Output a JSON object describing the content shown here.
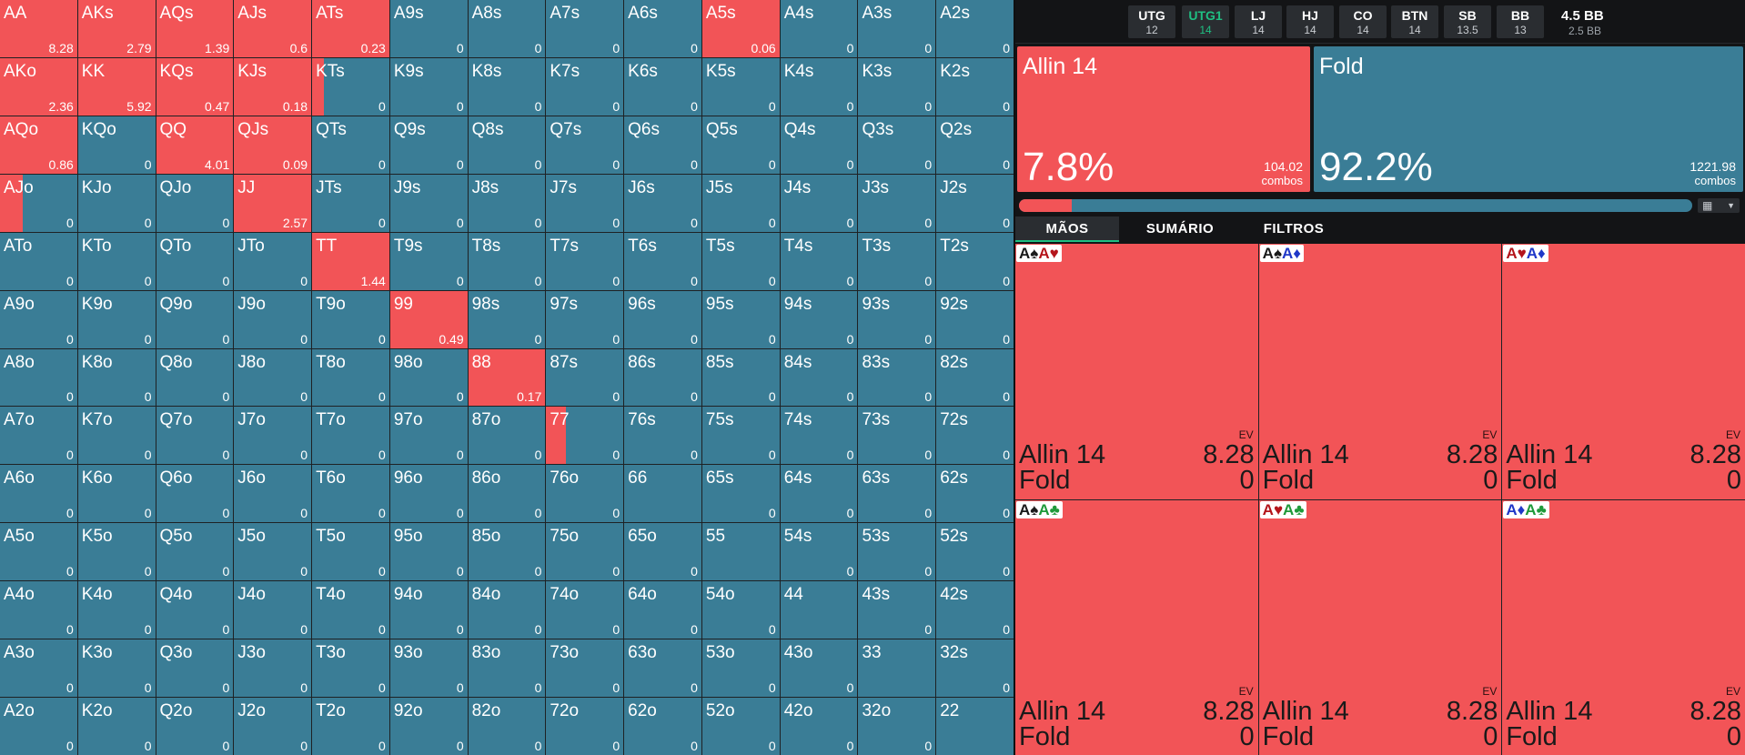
{
  "colors": {
    "allin": "#f25457",
    "fold": "#3a7d96",
    "active": "#1fbf82"
  },
  "range": [
    [
      [
        "AA",
        "8.28",
        1
      ],
      [
        "AKs",
        "2.79",
        1
      ],
      [
        "AQs",
        "1.39",
        1
      ],
      [
        "AJs",
        "0.6",
        1
      ],
      [
        "ATs",
        "0.23",
        1
      ],
      [
        "A9s",
        "0",
        0
      ],
      [
        "A8s",
        "0",
        0
      ],
      [
        "A7s",
        "0",
        0
      ],
      [
        "A6s",
        "0",
        0
      ],
      [
        "A5s",
        "0.06",
        1
      ],
      [
        "A4s",
        "0",
        0
      ],
      [
        "A3s",
        "0",
        0
      ],
      [
        "A2s",
        "0",
        0
      ]
    ],
    [
      [
        "AKo",
        "2.36",
        1
      ],
      [
        "KK",
        "5.92",
        1
      ],
      [
        "KQs",
        "0.47",
        1
      ],
      [
        "KJs",
        "0.18",
        1
      ],
      [
        "KTs",
        "0",
        0.15
      ],
      [
        "K9s",
        "0",
        0
      ],
      [
        "K8s",
        "0",
        0
      ],
      [
        "K7s",
        "0",
        0
      ],
      [
        "K6s",
        "0",
        0
      ],
      [
        "K5s",
        "0",
        0
      ],
      [
        "K4s",
        "0",
        0
      ],
      [
        "K3s",
        "0",
        0
      ],
      [
        "K2s",
        "0",
        0
      ]
    ],
    [
      [
        "AQo",
        "0.86",
        1
      ],
      [
        "KQo",
        "0",
        0
      ],
      [
        "QQ",
        "4.01",
        1
      ],
      [
        "QJs",
        "0.09",
        1
      ],
      [
        "QTs",
        "0",
        0
      ],
      [
        "Q9s",
        "0",
        0
      ],
      [
        "Q8s",
        "0",
        0
      ],
      [
        "Q7s",
        "0",
        0
      ],
      [
        "Q6s",
        "0",
        0
      ],
      [
        "Q5s",
        "0",
        0
      ],
      [
        "Q4s",
        "0",
        0
      ],
      [
        "Q3s",
        "0",
        0
      ],
      [
        "Q2s",
        "0",
        0
      ]
    ],
    [
      [
        "AJo",
        "0",
        0.3
      ],
      [
        "KJo",
        "0",
        0
      ],
      [
        "QJo",
        "0",
        0
      ],
      [
        "JJ",
        "2.57",
        1
      ],
      [
        "JTs",
        "0",
        0
      ],
      [
        "J9s",
        "0",
        0
      ],
      [
        "J8s",
        "0",
        0
      ],
      [
        "J7s",
        "0",
        0
      ],
      [
        "J6s",
        "0",
        0
      ],
      [
        "J5s",
        "0",
        0
      ],
      [
        "J4s",
        "0",
        0
      ],
      [
        "J3s",
        "0",
        0
      ],
      [
        "J2s",
        "0",
        0
      ]
    ],
    [
      [
        "ATo",
        "0",
        0
      ],
      [
        "KTo",
        "0",
        0
      ],
      [
        "QTo",
        "0",
        0
      ],
      [
        "JTo",
        "0",
        0
      ],
      [
        "TT",
        "1.44",
        1
      ],
      [
        "T9s",
        "0",
        0
      ],
      [
        "T8s",
        "0",
        0
      ],
      [
        "T7s",
        "0",
        0
      ],
      [
        "T6s",
        "0",
        0
      ],
      [
        "T5s",
        "0",
        0
      ],
      [
        "T4s",
        "0",
        0
      ],
      [
        "T3s",
        "0",
        0
      ],
      [
        "T2s",
        "0",
        0
      ]
    ],
    [
      [
        "A9o",
        "0",
        0
      ],
      [
        "K9o",
        "0",
        0
      ],
      [
        "Q9o",
        "0",
        0
      ],
      [
        "J9o",
        "0",
        0
      ],
      [
        "T9o",
        "0",
        0
      ],
      [
        "99",
        "0.49",
        1
      ],
      [
        "98s",
        "0",
        0
      ],
      [
        "97s",
        "0",
        0
      ],
      [
        "96s",
        "0",
        0
      ],
      [
        "95s",
        "0",
        0
      ],
      [
        "94s",
        "0",
        0
      ],
      [
        "93s",
        "0",
        0
      ],
      [
        "92s",
        "0",
        0
      ]
    ],
    [
      [
        "A8o",
        "0",
        0
      ],
      [
        "K8o",
        "0",
        0
      ],
      [
        "Q8o",
        "0",
        0
      ],
      [
        "J8o",
        "0",
        0
      ],
      [
        "T8o",
        "0",
        0
      ],
      [
        "98o",
        "0",
        0
      ],
      [
        "88",
        "0.17",
        1
      ],
      [
        "87s",
        "0",
        0
      ],
      [
        "86s",
        "0",
        0
      ],
      [
        "85s",
        "0",
        0
      ],
      [
        "84s",
        "0",
        0
      ],
      [
        "83s",
        "0",
        0
      ],
      [
        "82s",
        "0",
        0
      ]
    ],
    [
      [
        "A7o",
        "0",
        0
      ],
      [
        "K7o",
        "0",
        0
      ],
      [
        "Q7o",
        "0",
        0
      ],
      [
        "J7o",
        "0",
        0
      ],
      [
        "T7o",
        "0",
        0
      ],
      [
        "97o",
        "0",
        0
      ],
      [
        "87o",
        "0",
        0
      ],
      [
        "77",
        "0",
        0.25
      ],
      [
        "76s",
        "0",
        0
      ],
      [
        "75s",
        "0",
        0
      ],
      [
        "74s",
        "0",
        0
      ],
      [
        "73s",
        "0",
        0
      ],
      [
        "72s",
        "0",
        0
      ]
    ],
    [
      [
        "A6o",
        "0",
        0
      ],
      [
        "K6o",
        "0",
        0
      ],
      [
        "Q6o",
        "0",
        0
      ],
      [
        "J6o",
        "0",
        0
      ],
      [
        "T6o",
        "0",
        0
      ],
      [
        "96o",
        "0",
        0
      ],
      [
        "86o",
        "0",
        0
      ],
      [
        "76o",
        "0",
        0
      ],
      [
        "66",
        "",
        0
      ],
      [
        "65s",
        "0",
        0
      ],
      [
        "64s",
        "0",
        0
      ],
      [
        "63s",
        "0",
        0
      ],
      [
        "62s",
        "0",
        0
      ]
    ],
    [
      [
        "A5o",
        "0",
        0
      ],
      [
        "K5o",
        "0",
        0
      ],
      [
        "Q5o",
        "0",
        0
      ],
      [
        "J5o",
        "0",
        0
      ],
      [
        "T5o",
        "0",
        0
      ],
      [
        "95o",
        "0",
        0
      ],
      [
        "85o",
        "0",
        0
      ],
      [
        "75o",
        "0",
        0
      ],
      [
        "65o",
        "0",
        0
      ],
      [
        "55",
        "",
        0
      ],
      [
        "54s",
        "0",
        0
      ],
      [
        "53s",
        "0",
        0
      ],
      [
        "52s",
        "0",
        0
      ]
    ],
    [
      [
        "A4o",
        "0",
        0
      ],
      [
        "K4o",
        "0",
        0
      ],
      [
        "Q4o",
        "0",
        0
      ],
      [
        "J4o",
        "0",
        0
      ],
      [
        "T4o",
        "0",
        0
      ],
      [
        "94o",
        "0",
        0
      ],
      [
        "84o",
        "0",
        0
      ],
      [
        "74o",
        "0",
        0
      ],
      [
        "64o",
        "0",
        0
      ],
      [
        "54o",
        "0",
        0
      ],
      [
        "44",
        "",
        0
      ],
      [
        "43s",
        "0",
        0
      ],
      [
        "42s",
        "0",
        0
      ]
    ],
    [
      [
        "A3o",
        "0",
        0
      ],
      [
        "K3o",
        "0",
        0
      ],
      [
        "Q3o",
        "0",
        0
      ],
      [
        "J3o",
        "0",
        0
      ],
      [
        "T3o",
        "0",
        0
      ],
      [
        "93o",
        "0",
        0
      ],
      [
        "83o",
        "0",
        0
      ],
      [
        "73o",
        "0",
        0
      ],
      [
        "63o",
        "0",
        0
      ],
      [
        "53o",
        "0",
        0
      ],
      [
        "43o",
        "0",
        0
      ],
      [
        "33",
        "",
        0
      ],
      [
        "32s",
        "0",
        0
      ]
    ],
    [
      [
        "A2o",
        "0",
        0
      ],
      [
        "K2o",
        "0",
        0
      ],
      [
        "Q2o",
        "0",
        0
      ],
      [
        "J2o",
        "0",
        0
      ],
      [
        "T2o",
        "0",
        0
      ],
      [
        "92o",
        "0",
        0
      ],
      [
        "82o",
        "0",
        0
      ],
      [
        "72o",
        "0",
        0
      ],
      [
        "62o",
        "0",
        0
      ],
      [
        "52o",
        "0",
        0
      ],
      [
        "42o",
        "0",
        0
      ],
      [
        "32o",
        "0",
        0
      ],
      [
        "22",
        "",
        0
      ]
    ]
  ],
  "positions": [
    {
      "name": "UTG",
      "stack": "12",
      "active": false
    },
    {
      "name": "UTG1",
      "stack": "14",
      "active": true
    },
    {
      "name": "LJ",
      "stack": "14",
      "active": false
    },
    {
      "name": "HJ",
      "stack": "14",
      "active": false
    },
    {
      "name": "CO",
      "stack": "14",
      "active": false
    },
    {
      "name": "BTN",
      "stack": "14",
      "active": false
    },
    {
      "name": "SB",
      "stack": "13.5",
      "active": false
    },
    {
      "name": "BB",
      "stack": "13",
      "active": false
    }
  ],
  "pot": {
    "total": "4.5 BB",
    "sub": "2.5 BB"
  },
  "actions": [
    {
      "label": "Allin 14",
      "pct": "7.8%",
      "combos": "104.02",
      "combos_label": "combos",
      "color": "#f25457"
    },
    {
      "label": "Fold",
      "pct": "92.2%",
      "combos": "1221.98",
      "combos_label": "combos",
      "color": "#3a7d96"
    }
  ],
  "freq_bar": {
    "allin_fraction": 0.078
  },
  "view_toggle": {
    "grid_icon": "grid-icon",
    "chevron_icon": "chevron-down-icon"
  },
  "tabs": [
    {
      "label": "MÃOS",
      "active": true
    },
    {
      "label": "SUMÁRIO",
      "active": false
    },
    {
      "label": "FILTROS",
      "active": false
    }
  ],
  "combos": [
    {
      "cards": [
        {
          "r": "A",
          "s": "♠",
          "c": "#1a1a1a"
        },
        {
          "r": "A",
          "s": "♥",
          "c": "#b4151b"
        }
      ],
      "ev_label": "EV",
      "rows": [
        {
          "name": "Allin 14",
          "value": "8.28"
        },
        {
          "name": "Fold",
          "value": "0"
        }
      ]
    },
    {
      "cards": [
        {
          "r": "A",
          "s": "♠",
          "c": "#1a1a1a"
        },
        {
          "r": "A",
          "s": "♦",
          "c": "#2038c8"
        }
      ],
      "ev_label": "EV",
      "rows": [
        {
          "name": "Allin 14",
          "value": "8.28"
        },
        {
          "name": "Fold",
          "value": "0"
        }
      ]
    },
    {
      "cards": [
        {
          "r": "A",
          "s": "♥",
          "c": "#b4151b"
        },
        {
          "r": "A",
          "s": "♦",
          "c": "#2038c8"
        }
      ],
      "ev_label": "EV",
      "rows": [
        {
          "name": "Allin 14",
          "value": "8.28"
        },
        {
          "name": "Fold",
          "value": "0"
        }
      ]
    },
    {
      "cards": [
        {
          "r": "A",
          "s": "♠",
          "c": "#1a1a1a"
        },
        {
          "r": "A",
          "s": "♣",
          "c": "#1f9a3a"
        }
      ],
      "ev_label": "EV",
      "rows": [
        {
          "name": "Allin 14",
          "value": "8.28"
        },
        {
          "name": "Fold",
          "value": "0"
        }
      ]
    },
    {
      "cards": [
        {
          "r": "A",
          "s": "♥",
          "c": "#b4151b"
        },
        {
          "r": "A",
          "s": "♣",
          "c": "#1f9a3a"
        }
      ],
      "ev_label": "EV",
      "rows": [
        {
          "name": "Allin 14",
          "value": "8.28"
        },
        {
          "name": "Fold",
          "value": "0"
        }
      ]
    },
    {
      "cards": [
        {
          "r": "A",
          "s": "♦",
          "c": "#2038c8"
        },
        {
          "r": "A",
          "s": "♣",
          "c": "#1f9a3a"
        }
      ],
      "ev_label": "EV",
      "rows": [
        {
          "name": "Allin 14",
          "value": "8.28"
        },
        {
          "name": "Fold",
          "value": "0"
        }
      ]
    }
  ]
}
